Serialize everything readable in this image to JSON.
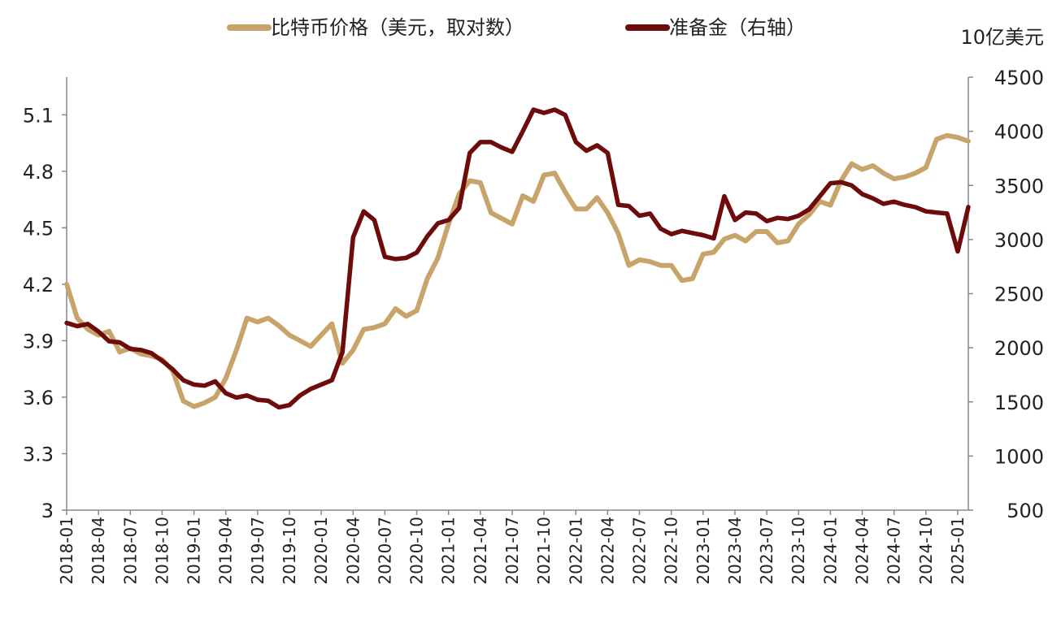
{
  "chart_data": {
    "type": "line",
    "title": "",
    "legend": {
      "placement": "top",
      "entries": [
        {
          "label": "比特币价格（美元，取对数）",
          "color": "#C8A46A"
        },
        {
          "label": "准备金（右轴）",
          "color": "#6E0B0B"
        }
      ]
    },
    "ylabel_right_unit": "10亿美元",
    "y_left": {
      "min": 3.0,
      "max": 5.3,
      "ticks": [
        "3",
        "3.3",
        "3.6",
        "3.9",
        "4.2",
        "4.5",
        "4.8",
        "5.1"
      ]
    },
    "y_right": {
      "min": 500,
      "max": 4500,
      "ticks": [
        "500",
        "1000",
        "1500",
        "2000",
        "2500",
        "3000",
        "3500",
        "4000",
        "4500"
      ]
    },
    "x_ticks": [
      "2018-01",
      "2018-04",
      "2018-07",
      "2018-10",
      "2019-01",
      "2019-04",
      "2019-07",
      "2019-10",
      "2020-01",
      "2020-04",
      "2020-07",
      "2020-10",
      "2021-01",
      "2021-04",
      "2021-07",
      "2021-10",
      "2022-01",
      "2022-04",
      "2022-07",
      "2022-10",
      "2023-01",
      "2023-04",
      "2023-07",
      "2023-10",
      "2024-01",
      "2024-04",
      "2024-07",
      "2024-10",
      "2025-01"
    ],
    "x_start": "2018-01",
    "x_end": "2025-02",
    "grid": false,
    "series": [
      {
        "name": "比特币价格（美元，取对数）",
        "axis": "left",
        "color": "#C8A46A",
        "points": [
          [
            "2018-01",
            4.2
          ],
          [
            "2018-02",
            4.02
          ],
          [
            "2018-03",
            3.96
          ],
          [
            "2018-04",
            3.93
          ],
          [
            "2018-05",
            3.95
          ],
          [
            "2018-06",
            3.84
          ],
          [
            "2018-07",
            3.86
          ],
          [
            "2018-08",
            3.83
          ],
          [
            "2018-09",
            3.82
          ],
          [
            "2018-10",
            3.8
          ],
          [
            "2018-11",
            3.74
          ],
          [
            "2018-12",
            3.58
          ],
          [
            "2019-01",
            3.55
          ],
          [
            "2019-02",
            3.57
          ],
          [
            "2019-03",
            3.6
          ],
          [
            "2019-04",
            3.7
          ],
          [
            "2019-05",
            3.85
          ],
          [
            "2019-06",
            4.02
          ],
          [
            "2019-07",
            4.0
          ],
          [
            "2019-08",
            4.02
          ],
          [
            "2019-09",
            3.98
          ],
          [
            "2019-10",
            3.93
          ],
          [
            "2019-11",
            3.9
          ],
          [
            "2019-12",
            3.87
          ],
          [
            "2020-01",
            3.93
          ],
          [
            "2020-02",
            3.99
          ],
          [
            "2020-03",
            3.78
          ],
          [
            "2020-04",
            3.85
          ],
          [
            "2020-05",
            3.96
          ],
          [
            "2020-06",
            3.97
          ],
          [
            "2020-07",
            3.99
          ],
          [
            "2020-08",
            4.07
          ],
          [
            "2020-09",
            4.03
          ],
          [
            "2020-10",
            4.06
          ],
          [
            "2020-11",
            4.23
          ],
          [
            "2020-12",
            4.34
          ],
          [
            "2021-01",
            4.52
          ],
          [
            "2021-02",
            4.68
          ],
          [
            "2021-03",
            4.75
          ],
          [
            "2021-04",
            4.74
          ],
          [
            "2021-05",
            4.58
          ],
          [
            "2021-06",
            4.55
          ],
          [
            "2021-07",
            4.52
          ],
          [
            "2021-08",
            4.67
          ],
          [
            "2021-09",
            4.64
          ],
          [
            "2021-10",
            4.78
          ],
          [
            "2021-11",
            4.79
          ],
          [
            "2021-12",
            4.69
          ],
          [
            "2022-01",
            4.6
          ],
          [
            "2022-02",
            4.6
          ],
          [
            "2022-03",
            4.66
          ],
          [
            "2022-04",
            4.58
          ],
          [
            "2022-05",
            4.47
          ],
          [
            "2022-06",
            4.3
          ],
          [
            "2022-07",
            4.33
          ],
          [
            "2022-08",
            4.32
          ],
          [
            "2022-09",
            4.3
          ],
          [
            "2022-10",
            4.3
          ],
          [
            "2022-11",
            4.22
          ],
          [
            "2022-12",
            4.23
          ],
          [
            "2023-01",
            4.36
          ],
          [
            "2023-02",
            4.37
          ],
          [
            "2023-03",
            4.44
          ],
          [
            "2023-04",
            4.46
          ],
          [
            "2023-05",
            4.43
          ],
          [
            "2023-06",
            4.48
          ],
          [
            "2023-07",
            4.48
          ],
          [
            "2023-08",
            4.42
          ],
          [
            "2023-09",
            4.43
          ],
          [
            "2023-10",
            4.52
          ],
          [
            "2023-11",
            4.57
          ],
          [
            "2023-12",
            4.64
          ],
          [
            "2024-01",
            4.62
          ],
          [
            "2024-02",
            4.75
          ],
          [
            "2024-03",
            4.84
          ],
          [
            "2024-04",
            4.81
          ],
          [
            "2024-05",
            4.83
          ],
          [
            "2024-06",
            4.79
          ],
          [
            "2024-07",
            4.76
          ],
          [
            "2024-08",
            4.77
          ],
          [
            "2024-09",
            4.79
          ],
          [
            "2024-10",
            4.82
          ],
          [
            "2024-11",
            4.97
          ],
          [
            "2024-12",
            4.99
          ],
          [
            "2025-01",
            4.98
          ],
          [
            "2025-02",
            4.96
          ]
        ]
      },
      {
        "name": "准备金（右轴）",
        "axis": "right",
        "color": "#6E0B0B",
        "points": [
          [
            "2018-01",
            2230
          ],
          [
            "2018-02",
            2200
          ],
          [
            "2018-03",
            2220
          ],
          [
            "2018-04",
            2150
          ],
          [
            "2018-05",
            2060
          ],
          [
            "2018-06",
            2050
          ],
          [
            "2018-07",
            1990
          ],
          [
            "2018-08",
            1980
          ],
          [
            "2018-09",
            1950
          ],
          [
            "2018-10",
            1880
          ],
          [
            "2018-11",
            1800
          ],
          [
            "2018-12",
            1700
          ],
          [
            "2019-01",
            1660
          ],
          [
            "2019-02",
            1650
          ],
          [
            "2019-03",
            1690
          ],
          [
            "2019-04",
            1580
          ],
          [
            "2019-05",
            1540
          ],
          [
            "2019-06",
            1560
          ],
          [
            "2019-07",
            1520
          ],
          [
            "2019-08",
            1510
          ],
          [
            "2019-09",
            1450
          ],
          [
            "2019-10",
            1470
          ],
          [
            "2019-11",
            1560
          ],
          [
            "2019-12",
            1620
          ],
          [
            "2020-01",
            1660
          ],
          [
            "2020-02",
            1700
          ],
          [
            "2020-03",
            1960
          ],
          [
            "2020-04",
            3020
          ],
          [
            "2020-05",
            3260
          ],
          [
            "2020-06",
            3180
          ],
          [
            "2020-07",
            2840
          ],
          [
            "2020-08",
            2820
          ],
          [
            "2020-09",
            2830
          ],
          [
            "2020-10",
            2880
          ],
          [
            "2020-11",
            3030
          ],
          [
            "2020-12",
            3150
          ],
          [
            "2021-01",
            3180
          ],
          [
            "2021-02",
            3290
          ],
          [
            "2021-03",
            3800
          ],
          [
            "2021-04",
            3900
          ],
          [
            "2021-05",
            3900
          ],
          [
            "2021-06",
            3850
          ],
          [
            "2021-07",
            3810
          ],
          [
            "2021-08",
            4000
          ],
          [
            "2021-09",
            4200
          ],
          [
            "2021-10",
            4170
          ],
          [
            "2021-11",
            4200
          ],
          [
            "2021-12",
            4150
          ],
          [
            "2022-01",
            3900
          ],
          [
            "2022-02",
            3820
          ],
          [
            "2022-03",
            3870
          ],
          [
            "2022-04",
            3800
          ],
          [
            "2022-05",
            3320
          ],
          [
            "2022-06",
            3310
          ],
          [
            "2022-07",
            3220
          ],
          [
            "2022-08",
            3240
          ],
          [
            "2022-09",
            3100
          ],
          [
            "2022-10",
            3050
          ],
          [
            "2022-11",
            3080
          ],
          [
            "2022-12",
            3060
          ],
          [
            "2023-01",
            3040
          ],
          [
            "2023-02",
            3010
          ],
          [
            "2023-03",
            3400
          ],
          [
            "2023-04",
            3180
          ],
          [
            "2023-05",
            3250
          ],
          [
            "2023-06",
            3240
          ],
          [
            "2023-07",
            3170
          ],
          [
            "2023-08",
            3200
          ],
          [
            "2023-09",
            3190
          ],
          [
            "2023-10",
            3220
          ],
          [
            "2023-11",
            3280
          ],
          [
            "2023-12",
            3400
          ],
          [
            "2024-01",
            3520
          ],
          [
            "2024-02",
            3530
          ],
          [
            "2024-03",
            3500
          ],
          [
            "2024-04",
            3420
          ],
          [
            "2024-05",
            3380
          ],
          [
            "2024-06",
            3330
          ],
          [
            "2024-07",
            3350
          ],
          [
            "2024-08",
            3320
          ],
          [
            "2024-09",
            3300
          ],
          [
            "2024-10",
            3260
          ],
          [
            "2024-11",
            3250
          ],
          [
            "2024-12",
            3240
          ],
          [
            "2025-01",
            2890
          ],
          [
            "2025-02",
            3300
          ]
        ]
      }
    ]
  }
}
